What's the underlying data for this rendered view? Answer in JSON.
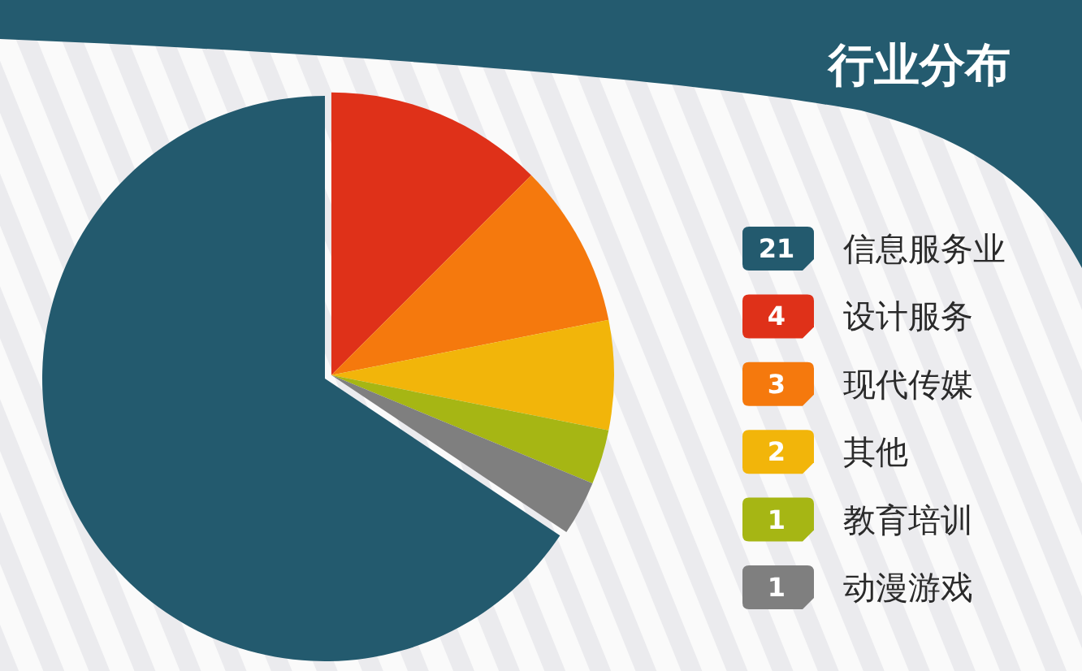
{
  "chart_data": {
    "type": "pie",
    "title": "行业分布",
    "categories": [
      "信息服务业",
      "设计服务",
      "现代传媒",
      "其他",
      "教育培训",
      "动漫游戏"
    ],
    "values": [
      21,
      4,
      3,
      2,
      1,
      1
    ],
    "colors": [
      "#235a6e",
      "#df3119",
      "#f5790d",
      "#f2b50a",
      "#a6b614",
      "#7f7f7f"
    ],
    "legend": "right",
    "data_labels": true
  }
}
